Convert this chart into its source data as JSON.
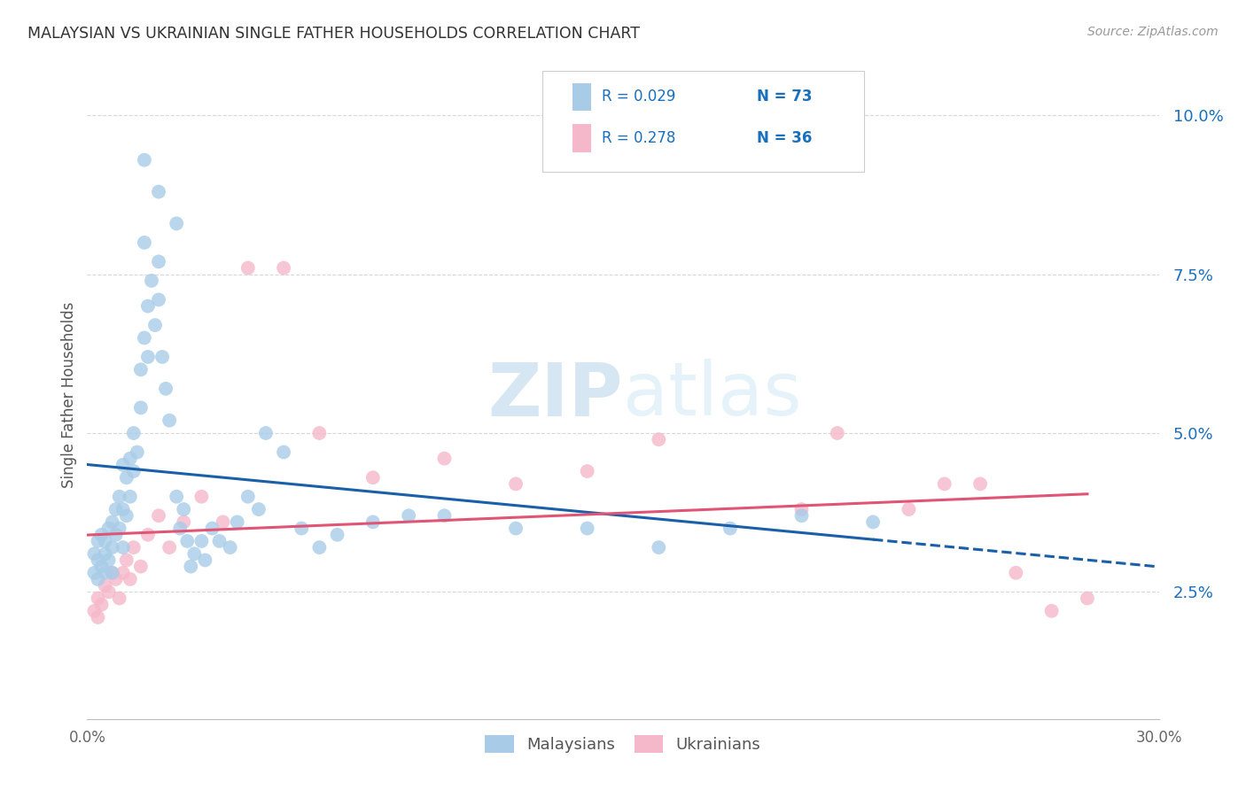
{
  "title": "MALAYSIAN VS UKRAINIAN SINGLE FATHER HOUSEHOLDS CORRELATION CHART",
  "source": "Source: ZipAtlas.com",
  "ylabel": "Single Father Households",
  "xlim": [
    0.0,
    0.3
  ],
  "ylim": [
    0.005,
    0.107
  ],
  "ytick_vals": [
    0.025,
    0.05,
    0.075,
    0.1
  ],
  "ytick_labels": [
    "2.5%",
    "5.0%",
    "7.5%",
    "10.0%"
  ],
  "xtick_vals": [
    0.0,
    0.05,
    0.1,
    0.15,
    0.2,
    0.25,
    0.3
  ],
  "xtick_labels": [
    "0.0%",
    "",
    "",
    "",
    "",
    "",
    "30.0%"
  ],
  "blue_scatter": "#a8cce8",
  "pink_scatter": "#f5b8cb",
  "blue_line": "#1a5fa8",
  "pink_line": "#e05575",
  "legend_text_color": "#1a6fbd",
  "title_color": "#333333",
  "source_color": "#999999",
  "grid_color": "#d8d8d8",
  "watermark_color": "#ddeef7",
  "background": "#ffffff",
  "legend_r1": "R = 0.029",
  "legend_n1": "N = 73",
  "legend_r2": "R = 0.278",
  "legend_n2": "N = 36",
  "label1": "Malaysians",
  "label2": "Ukrainians"
}
